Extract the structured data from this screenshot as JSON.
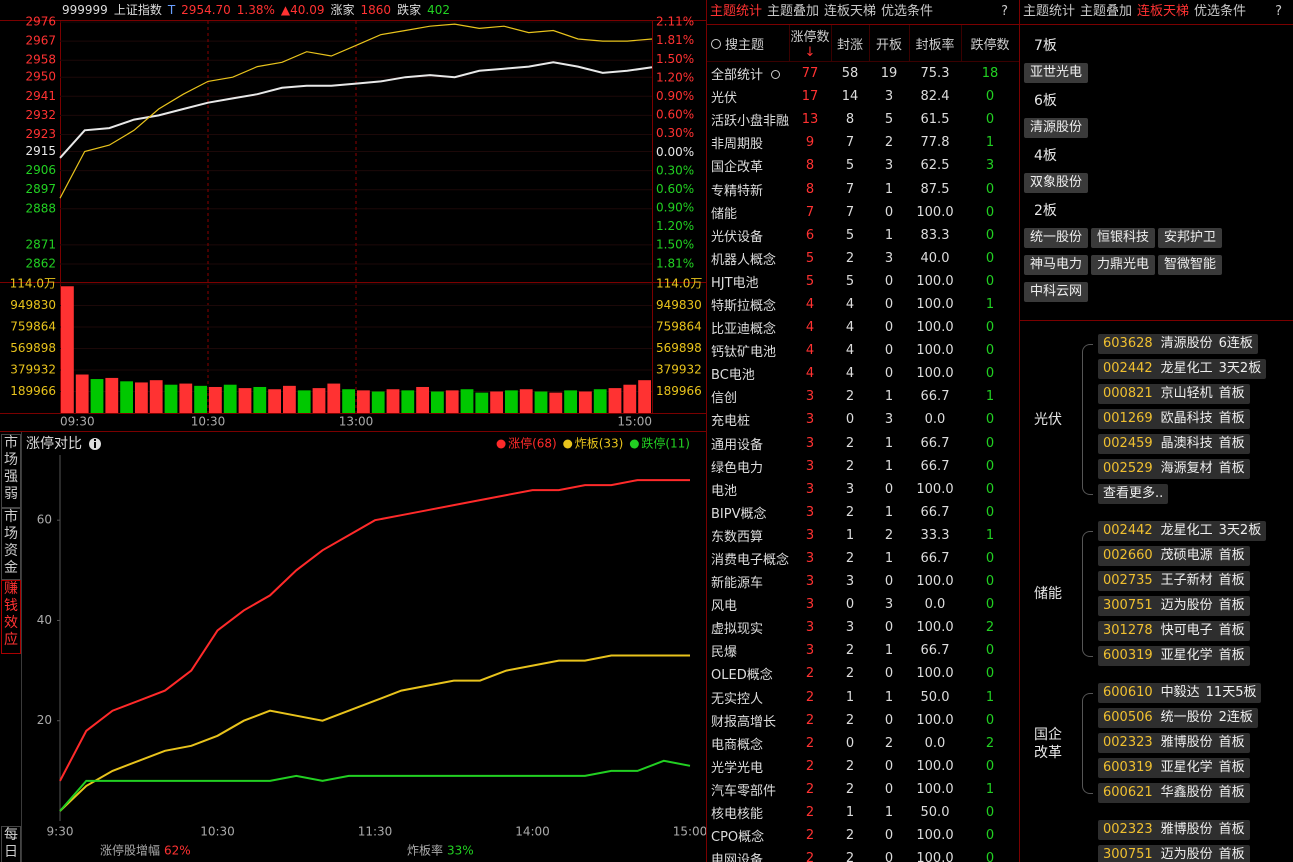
{
  "header": {
    "code": "999999",
    "name": "上证指数",
    "flag": "T",
    "price": "2954.70",
    "pct": "1.38%",
    "change": "▲40.09",
    "up_label": "涨家",
    "up": "1860",
    "down_label": "跌家",
    "down": "402"
  },
  "price_chart": {
    "type": "line",
    "xlim": [
      0,
      240
    ],
    "xticks": [
      {
        "value": 0,
        "label": "09:30"
      },
      {
        "value": 60,
        "label": "10:30"
      },
      {
        "value": 120,
        "label": "13:00"
      },
      {
        "value": 240,
        "label": "15:00"
      }
    ],
    "ylim": [
      2862,
      2976
    ],
    "yticks": [
      2976,
      2967,
      2958,
      2950,
      2941,
      2932,
      2923,
      2915,
      2906,
      2897,
      2888,
      2871,
      2862
    ],
    "y2lim": [
      -1.81,
      2.11
    ],
    "y2ticks": [
      {
        "value": 2.11,
        "label": "2.11%"
      },
      {
        "value": 1.81,
        "label": "1.81%"
      },
      {
        "value": 1.5,
        "label": "1.50%"
      },
      {
        "value": 1.2,
        "label": "1.20%"
      },
      {
        "value": 0.9,
        "label": "0.90%"
      },
      {
        "value": 0.6,
        "label": "0.60%"
      },
      {
        "value": 0.3,
        "label": "0.30%"
      },
      {
        "value": 0,
        "label": "0.00%"
      },
      {
        "value": -0.3,
        "label": "0.30%"
      },
      {
        "value": -0.6,
        "label": "0.60%"
      },
      {
        "value": -0.9,
        "label": "0.90%"
      },
      {
        "value": -1.2,
        "label": "1.20%"
      },
      {
        "value": -1.5,
        "label": "1.50%"
      },
      {
        "value": -1.81,
        "label": "1.81%"
      }
    ],
    "x": [
      0,
      10,
      20,
      30,
      40,
      50,
      60,
      70,
      80,
      90,
      100,
      110,
      120,
      130,
      140,
      150,
      160,
      170,
      180,
      190,
      200,
      210,
      220,
      230,
      240
    ],
    "series": [
      {
        "color": "#e8e8e8",
        "values": [
          2912,
          2925,
          2926,
          2930,
          2932,
          2935,
          2938,
          2940,
          2942,
          2945,
          2946,
          2946,
          2947,
          2948,
          2950,
          2951,
          2950,
          2953,
          2954,
          2955,
          2957,
          2955,
          2952,
          2953,
          2954.7
        ]
      },
      {
        "color": "#e8c31c",
        "values": [
          2893,
          2915,
          2918,
          2925,
          2935,
          2942,
          2948,
          2950,
          2955,
          2957,
          2962,
          2960,
          2965,
          2970,
          2972,
          2974,
          2975,
          2973,
          2974,
          2971,
          2972,
          2968,
          2967,
          2967,
          2968
        ]
      }
    ]
  },
  "volume_chart": {
    "type": "bar",
    "ylim": [
      0,
      1140000
    ],
    "yticks": [
      {
        "value": 1140000,
        "label": "114.0万"
      },
      949830,
      759864,
      569898,
      379932,
      189966
    ],
    "values": [
      1120000,
      340000,
      300000,
      310000,
      280000,
      270000,
      290000,
      250000,
      260000,
      240000,
      230000,
      250000,
      220000,
      230000,
      210000,
      240000,
      200000,
      220000,
      260000,
      210000,
      200000,
      190000,
      210000,
      200000,
      230000,
      190000,
      200000,
      210000,
      180000,
      190000,
      200000,
      210000,
      190000,
      180000,
      200000,
      190000,
      210000,
      220000,
      250000,
      290000
    ],
    "colors": [
      "#ff3232",
      "#ff3232",
      "#00c800",
      "#ff3232",
      "#00c800",
      "#ff3232",
      "#ff3232",
      "#00c800",
      "#ff3232",
      "#00c800",
      "#ff3232",
      "#00c800",
      "#ff3232",
      "#00c800",
      "#ff3232",
      "#ff3232",
      "#00c800",
      "#ff3232",
      "#ff3232",
      "#00c800",
      "#ff3232",
      "#00c800",
      "#ff3232",
      "#00c800",
      "#ff3232",
      "#00c800",
      "#ff3232",
      "#00c800",
      "#00c800",
      "#ff3232",
      "#00c800",
      "#ff3232",
      "#00c800",
      "#ff3232",
      "#00c800",
      "#ff3232",
      "#00c800",
      "#ff3232",
      "#ff3232",
      "#ff3232"
    ]
  },
  "side_tabs": {
    "items": [
      "市场强弱",
      "市场资金",
      "赚钱效应",
      "每日"
    ],
    "active": 2
  },
  "limit_chart": {
    "type": "line",
    "title": "涨停对比",
    "xlim": [
      0,
      240
    ],
    "xticks": [
      {
        "value": 0,
        "label": "9:30"
      },
      {
        "value": 60,
        "label": "10:30"
      },
      {
        "value": 120,
        "label": "11:30"
      },
      {
        "value": 180,
        "label": "14:00"
      },
      {
        "value": 240,
        "label": "15:00"
      }
    ],
    "ylim": [
      0,
      73
    ],
    "yticks": [
      20,
      40,
      60
    ],
    "x": [
      0,
      10,
      20,
      30,
      40,
      50,
      60,
      70,
      80,
      90,
      100,
      110,
      120,
      130,
      140,
      150,
      160,
      170,
      180,
      190,
      200,
      210,
      220,
      230,
      240
    ],
    "series": [
      {
        "name": "涨停(68)",
        "color": "#ff2a2a",
        "values": [
          8,
          18,
          22,
          24,
          26,
          30,
          38,
          42,
          45,
          50,
          54,
          57,
          60,
          61,
          62,
          63,
          64,
          65,
          66,
          66,
          67,
          67,
          68,
          68,
          68
        ]
      },
      {
        "name": "炸板(33)",
        "color": "#e8c31c",
        "values": [
          2,
          7,
          10,
          12,
          14,
          15,
          17,
          20,
          22,
          21,
          20,
          22,
          24,
          26,
          27,
          28,
          28,
          30,
          31,
          32,
          32,
          33,
          33,
          33,
          33
        ]
      },
      {
        "name": "跌停(11)",
        "color": "#22d022",
        "values": [
          2,
          8,
          8,
          8,
          8,
          8,
          8,
          8,
          8,
          9,
          8,
          9,
          9,
          9,
          9,
          9,
          9,
          9,
          9,
          9,
          9,
          10,
          10,
          12,
          11
        ]
      }
    ],
    "stats": [
      {
        "label": "涨停股增幅",
        "value": "62%",
        "color": "#ff3232"
      },
      {
        "label": "炸板率",
        "value": "33%",
        "color": "#22d022"
      }
    ]
  },
  "middle_tabs": {
    "items": [
      "主题统计",
      "主题叠加",
      "连板天梯",
      "优选条件",
      "?"
    ],
    "active": 0
  },
  "theme_table": {
    "search": "搜主题",
    "sort_arrow": "↓",
    "columns": [
      "涨停数",
      "封涨",
      "开板",
      "封板率",
      "跌停数"
    ],
    "rows": [
      [
        "全部统计",
        "77",
        "58",
        "19",
        "75.3",
        "18"
      ],
      [
        "光伏",
        "17",
        "14",
        "3",
        "82.4",
        "0"
      ],
      [
        "活跃小盘非融",
        "13",
        "8",
        "5",
        "61.5",
        "0"
      ],
      [
        "非周期股",
        "9",
        "7",
        "2",
        "77.8",
        "1"
      ],
      [
        "国企改革",
        "8",
        "5",
        "3",
        "62.5",
        "3"
      ],
      [
        "专精特新",
        "8",
        "7",
        "1",
        "87.5",
        "0"
      ],
      [
        "储能",
        "7",
        "7",
        "0",
        "100.0",
        "0"
      ],
      [
        "光伏设备",
        "6",
        "5",
        "1",
        "83.3",
        "0"
      ],
      [
        "机器人概念",
        "5",
        "2",
        "3",
        "40.0",
        "0"
      ],
      [
        "HJT电池",
        "5",
        "5",
        "0",
        "100.0",
        "0"
      ],
      [
        "特斯拉概念",
        "4",
        "4",
        "0",
        "100.0",
        "1"
      ],
      [
        "比亚迪概念",
        "4",
        "4",
        "0",
        "100.0",
        "0"
      ],
      [
        "钙钛矿电池",
        "4",
        "4",
        "0",
        "100.0",
        "0"
      ],
      [
        "BC电池",
        "4",
        "4",
        "0",
        "100.0",
        "0"
      ],
      [
        "信创",
        "3",
        "2",
        "1",
        "66.7",
        "1"
      ],
      [
        "充电桩",
        "3",
        "0",
        "3",
        "0.0",
        "0"
      ],
      [
        "通用设备",
        "3",
        "2",
        "1",
        "66.7",
        "0"
      ],
      [
        "绿色电力",
        "3",
        "2",
        "1",
        "66.7",
        "0"
      ],
      [
        "电池",
        "3",
        "3",
        "0",
        "100.0",
        "0"
      ],
      [
        "BIPV概念",
        "3",
        "2",
        "1",
        "66.7",
        "0"
      ],
      [
        "东数西算",
        "3",
        "1",
        "2",
        "33.3",
        "1"
      ],
      [
        "消费电子概念",
        "3",
        "2",
        "1",
        "66.7",
        "0"
      ],
      [
        "新能源车",
        "3",
        "3",
        "0",
        "100.0",
        "0"
      ],
      [
        "风电",
        "3",
        "0",
        "3",
        "0.0",
        "0"
      ],
      [
        "虚拟现实",
        "3",
        "3",
        "0",
        "100.0",
        "2"
      ],
      [
        "民爆",
        "3",
        "2",
        "1",
        "66.7",
        "0"
      ],
      [
        "OLED概念",
        "2",
        "2",
        "0",
        "100.0",
        "0"
      ],
      [
        "无实控人",
        "2",
        "1",
        "1",
        "50.0",
        "1"
      ],
      [
        "财报高增长",
        "2",
        "2",
        "0",
        "100.0",
        "0"
      ],
      [
        "电商概念",
        "2",
        "0",
        "2",
        "0.0",
        "2"
      ],
      [
        "光学光电",
        "2",
        "2",
        "0",
        "100.0",
        "0"
      ],
      [
        "汽车零部件",
        "2",
        "2",
        "0",
        "100.0",
        "1"
      ],
      [
        "核电核能",
        "2",
        "1",
        "1",
        "50.0",
        "0"
      ],
      [
        "CPO概念",
        "2",
        "2",
        "0",
        "100.0",
        "0"
      ],
      [
        "电网设备",
        "2",
        "2",
        "0",
        "100.0",
        "0"
      ]
    ]
  },
  "right_tabs": {
    "items": [
      "主题统计",
      "主题叠加",
      "连板天梯",
      "优选条件",
      "?"
    ],
    "active": 2
  },
  "ladder": [
    {
      "level": "7板",
      "stocks": [
        "亚世光电"
      ]
    },
    {
      "level": "6板",
      "stocks": [
        "清源股份"
      ]
    },
    {
      "level": "4板",
      "stocks": [
        "双象股份"
      ]
    },
    {
      "level": "2板",
      "stocks": [
        "统一股份",
        "恒银科技",
        "安邦护卫",
        "神马电力",
        "力鼎光电",
        "智微智能",
        "中科云网"
      ]
    }
  ],
  "theme_tree": [
    {
      "theme": "光伏",
      "more": "查看更多..",
      "stocks": [
        {
          "code": "603628",
          "name": "清源股份",
          "tag": "6连板"
        },
        {
          "code": "002442",
          "name": "龙星化工",
          "tag": "3天2板"
        },
        {
          "code": "000821",
          "name": "京山轻机",
          "tag": "首板"
        },
        {
          "code": "001269",
          "name": "欧晶科技",
          "tag": "首板"
        },
        {
          "code": "002459",
          "name": "晶澳科技",
          "tag": "首板"
        },
        {
          "code": "002529",
          "name": "海源复材",
          "tag": "首板"
        }
      ]
    },
    {
      "theme": "储能",
      "stocks": [
        {
          "code": "002442",
          "name": "龙星化工",
          "tag": "3天2板"
        },
        {
          "code": "002660",
          "name": "茂硕电源",
          "tag": "首板"
        },
        {
          "code": "002735",
          "name": "王子新材",
          "tag": "首板"
        },
        {
          "code": "300751",
          "name": "迈为股份",
          "tag": "首板"
        },
        {
          "code": "301278",
          "name": "快可电子",
          "tag": "首板"
        },
        {
          "code": "600319",
          "name": "亚星化学",
          "tag": "首板"
        }
      ]
    },
    {
      "theme": "国企改革",
      "stocks": [
        {
          "code": "600610",
          "name": "中毅达",
          "tag": "11天5板"
        },
        {
          "code": "600506",
          "name": "统一股份",
          "tag": "2连板"
        },
        {
          "code": "002323",
          "name": "雅博股份",
          "tag": "首板"
        },
        {
          "code": "600319",
          "name": "亚星化学",
          "tag": "首板"
        },
        {
          "code": "600621",
          "name": "华鑫股份",
          "tag": "首板"
        }
      ]
    },
    {
      "theme": "",
      "stocks": [
        {
          "code": "002323",
          "name": "雅博股份",
          "tag": "首板"
        },
        {
          "code": "300751",
          "name": "迈为股份",
          "tag": "首板"
        }
      ]
    }
  ]
}
